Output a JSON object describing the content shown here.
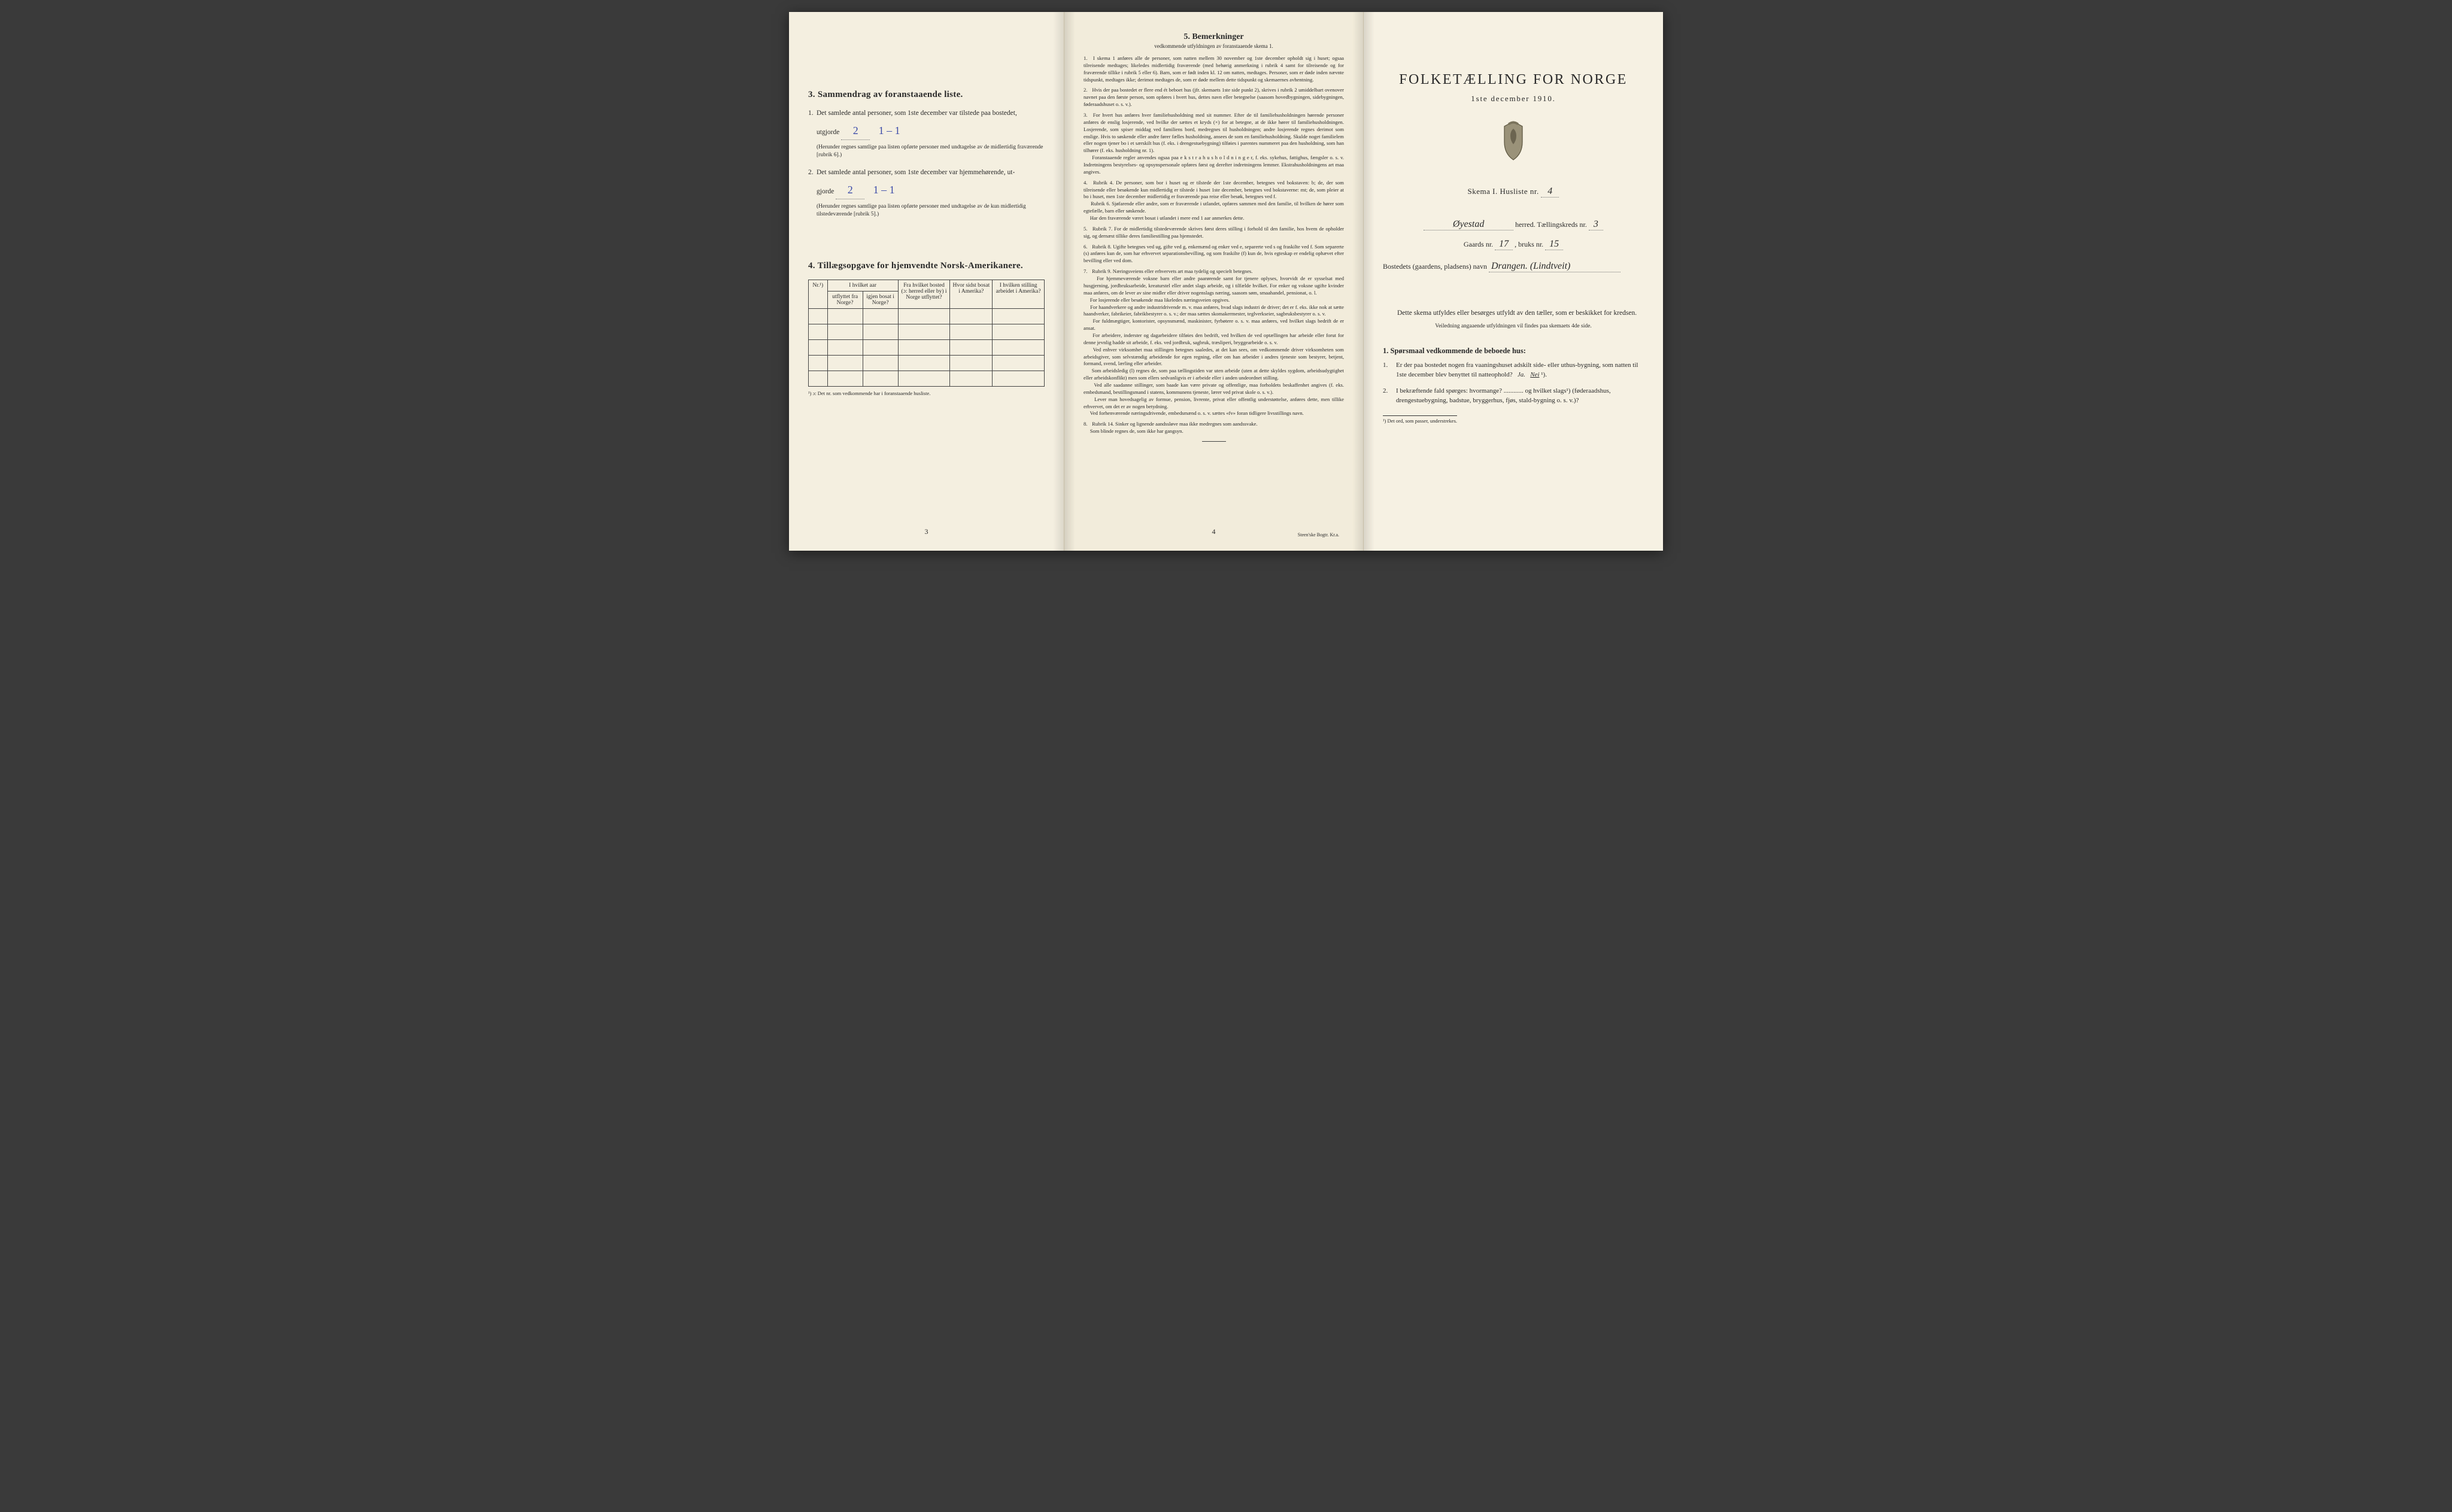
{
  "colors": {
    "paper": "#f4efe0",
    "paper2": "#f2ecdb",
    "paper3": "#f6f1e3",
    "ink": "#2a2a2a",
    "hand_ink": "#3a4aa8",
    "border": "#444444"
  },
  "page1": {
    "section3": {
      "title": "3.   Sammendrag av foranstaaende liste.",
      "q1_a": "Det samlede antal personer, som 1ste december var tilstede paa bostedet,",
      "q1_b": "utgjorde",
      "q1_val": "2",
      "q1_val2": "1 – 1",
      "q1_note": "(Herunder regnes samtlige paa listen opførte personer med undtagelse av de midlertidig fraværende [rubrik 6].)",
      "q2_a": "Det samlede antal personer, som 1ste december var hjemmehørende, ut-",
      "q2_b": "gjorde",
      "q2_val": "2",
      "q2_val2": "1 – 1",
      "q2_note": "(Herunder regnes samtlige paa listen opførte personer med undtagelse av de kun midlertidig tilstedeværende [rubrik 5].)"
    },
    "section4": {
      "title": "4.   Tillægsopgave for hjemvendte Norsk-Amerikanere.",
      "cols": [
        "Nr.¹)",
        "I hvilket aar\nutflyttet fra Norge?",
        "igjen bosat i Norge?",
        "Fra hvilket bosted (ɔ: herred eller by) i Norge utflyttet?",
        "Hvor sidst bosat i Amerika?",
        "I hvilken stilling arbeidet i Amerika?"
      ],
      "rows": 5,
      "footnote": "¹) ɔ: Det nr. som vedkommende har i foranstaaende husliste."
    },
    "page_number": "3"
  },
  "page2": {
    "title": "5.   Bemerkninger",
    "subtitle": "vedkommende utfyldningen av foranstaaende skema 1.",
    "notes": [
      "I skema 1 anføres alle de personer, som natten mellem 30 november og 1ste december opholdt sig i huset; ogsaa tilreisende medtages; likeledes midlertidig fraværende (med behørig anmerkning i rubrik 4 samt for tilreisende og for fraværende tillike i rubrik 5 eller 6). Barn, som er født inden kl. 12 om natten, medtages. Personer, som er døde inden nævnte tidspunkt, medtages ikke; derimot medtages de, som er døde mellem dette tidspunkt og skemaernes avhentning.",
      "Hvis der paa bostedet er flere end ét beboet hus (jfr. skemaets 1ste side punkt 2), skrives i rubrik 2 umiddelbart ovenover navnet paa den første person, som opføres i hvert hus, dettes navn eller betegnelse (saasom hovedbygningen, sidebygningen, føderaadshuset o. s. v.).",
      "For hvert hus anføres hver familiehusholdning med sit nummer. Efter de til familiehusholdningen hørende personer anføres de enslig losjerende, ved hvilke der sættes et kryds (×) for at betegne, at de ikke hører til familiehusholdningen. Losjerende, som spiser middag ved familiens bord, medregnes til husholdningen; andre losjerende regnes derimot som enslige. Hvis to søskende eller andre fører fælles husholdning, ansees de som en familiehusholdning. Skulde noget familielem eller nogen tjener bo i et særskilt hus (f. eks. i drengestuebygning) tilføies i parentes nummeret paa den husholdning, som han tilhører (f. eks. husholdning nr. 1).\n     Foranstaaende regler anvendes ogsaa paa e k s t r a h u s h o l d n i n g e r, f. eks. sykehus, fattighus, fængsler o. s. v. Indretningens bestyrelses- og opsynspersonale opføres først og derefter indretningens lemmer. Ekstrahusholdningens art maa angives.",
      "Rubrik 4. De personer, som bor i huset og er tilstede der 1ste december, betegnes ved bokstaven: b; de, der som tilreisende eller besøkende kun midlertidig er tilstede i huset 1ste december, betegnes ved bokstaverne: mt; de, som pleier at bo i huset, men 1ste december midlertidig er fraværende paa reise eller besøk, betegnes ved f.\n     Rubrik 6. Sjøfarende eller andre, som er fraværende i utlandet, opføres sammen med den familie, til hvilken de hører som egtefælle, barn eller søskende.\n     Har den fraværende været bosat i utlandet i mere end 1 aar anmerkes dette.",
      "Rubrik 7. For de midlertidig tilstedeværende skrives først deres stilling i forhold til den familie, hos hvem de opholder sig, og dernæst tillike deres familiestilling paa hjemstedet.",
      "Rubrik 8. Ugifte betegnes ved ug, gifte ved g, enkemænd og enker ved e, separerte ved s og fraskilte ved f. Som separerte (s) anføres kun de, som har erhvervet separationsbevilling, og som fraskilte (f) kun de, hvis egteskap er endelig ophævet efter bevilling eller ved dom.",
      "Rubrik 9. Næringsveiens eller erhvervets art maa tydelig og specielt betegnes.\n     For hjemmeværende voksne barn eller andre paarørende samt for tjenere oplyses, hvorvidt de er sysselsat med husgjerning, jordbruksarbeide, kreaturstel eller andet slags arbeide, og i tilfælde hvilket. For enker og voksne ugifte kvinder maa anføres, om de lever av sine midler eller driver nogenslags næring, saasom søm, smaahandel, pensionat, o. l.\n     For losjerende eller besøkende maa likeledes næringsveien opgives.\n     For haandverkere og andre industridrivende m. v. maa anføres, hvad slags industri de driver; det er f. eks. ikke nok at sætte haandverker, fabrikeier, fabrikbestyrer o. s. v.; der maa sættes skomakermester, teglverkseier, sagbruksbestyrer o. s. v.\n     For fuldmægtiger, kontorister, opsynsmænd, maskinister, fyrbøtere o. s. v. maa anføres, ved hvilket slags bedrift de er ansat.\n     For arbeidere, inderster og dagarbeidere tilføies den bedrift, ved hvilken de ved optællingen har arbeide eller forut for denne jevnlig hadde sit arbeide, f. eks. ved jordbruk, sagbruk, træsliperi, bryggearbeide o. s. v.\n     Ved enhver virksomhet maa stillingen betegnes saaledes, at det kan sees, om vedkommende driver virksomheten som arbeidsgiver, som selvstændig arbeidende for egen regning, eller om han arbeider i andres tjeneste som bestyrer, betjent, formand, svend, lærling eller arbeider.\n     Som arbeidsledig (l) regnes de, som paa tællingstiden var uten arbeide (uten at dette skyldes sygdom, arbeidsudygtighet eller arbeidskonflikt) men som ellers sedvanligvis er i arbeide eller i anden undeordnet stilling.\n     Ved alle saadanne stillinger, som baade kan være private og offentlige, maa forholdets beskaffenhet angives (f. eks. embedsmand, bestillingsmand i statens, kommunens tjeneste, lærer ved privat skole o. s. v.).\n     Lever man hovedsagelig av formue, pension, livrente, privat eller offentlig understøttelse, anføres dette, men tillike erhvervet, om det er av nogen betydning.\n     Ved forhenværende næringsdrivende, embedsmænd o. s. v. sættes «fv» foran tidligere livsstillings navn.",
      "Rubrik 14. Sinker og lignende aandssløve maa ikke medregnes som aandssvake.\n     Som blinde regnes de, som ikke har gangsyn."
    ],
    "page_number": "4",
    "printer": "Steen'ske Bogtr.  Kr.a."
  },
  "page3": {
    "title": "FOLKETÆLLING FOR NORGE",
    "date": "1ste december 1910.",
    "skema_label": "Skema I.   Husliste nr.",
    "husliste_nr": "4",
    "herred_label": "herred.   Tællingskreds nr.",
    "herred_val": "Øyestad",
    "kreds_nr": "3",
    "gaards_label_a": "Gaards nr.",
    "gaards_nr": "17",
    "gaards_label_b": ", bruks nr.",
    "bruks_nr": "15",
    "bosted_label": "Bostedets (gaardens, pladsens) navn",
    "bosted_val": "Drangen. (Lindtveit)",
    "body_a": "Dette skema utfyldes eller besørges utfyldt av den tæller, som er beskikket for kredsen.",
    "body_b": "Veiledning angaaende utfyldningen vil findes paa skemaets 4de side.",
    "q_heading": "1. Spørsmaal vedkommende de beboede hus:",
    "q1": "Er der paa bostedet nogen fra vaaningshuset adskilt side- eller uthus-bygning, som natten til 1ste december blev benyttet til natteophold?   Ja.   Nei ¹).",
    "q2": "I bekræftende fald spørges: hvormange? ............ og hvilket slags¹) (føderaadshus, drengestuebygning, badstue, bryggerhus, fjøs, stald-bygning o. s. v.)?",
    "footnote": "¹) Det ord, som passer, understrekes."
  }
}
